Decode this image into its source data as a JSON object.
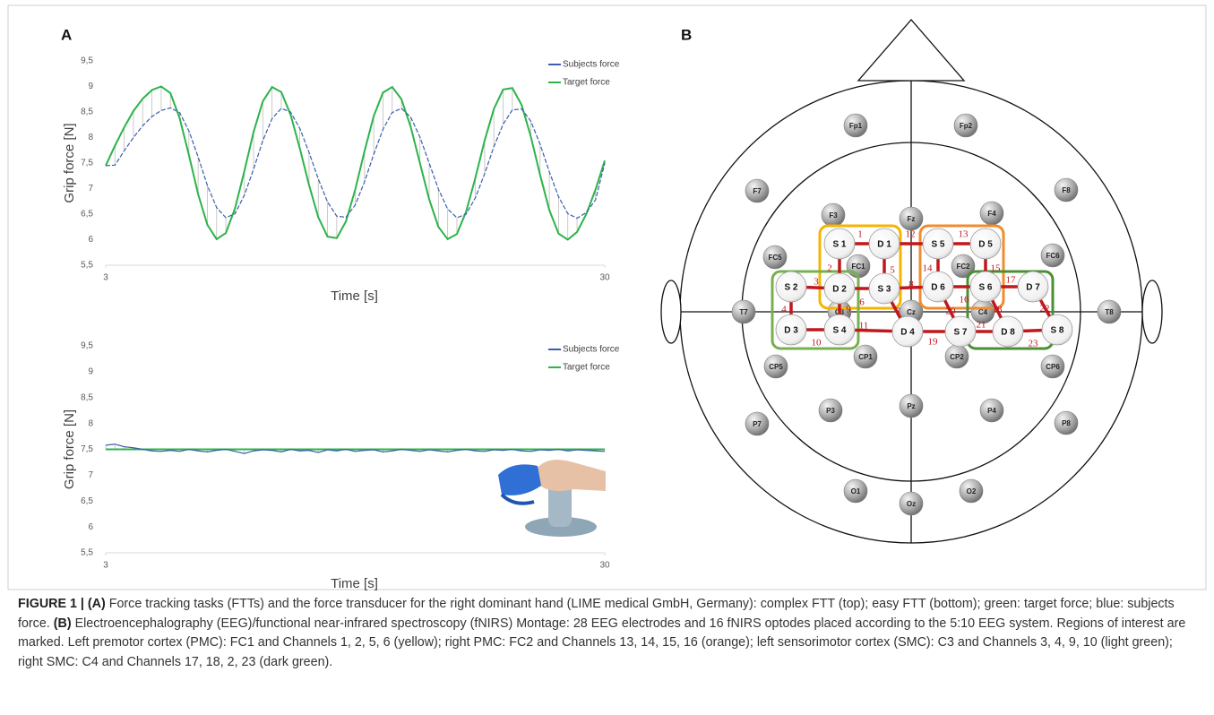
{
  "panel_labels": [
    "A",
    "B"
  ],
  "chart_data": [
    {
      "type": "line",
      "ylabel": "Grip force [N]",
      "xlabel": "Time [s]",
      "x": [
        3,
        3.5,
        4,
        4.5,
        5,
        5.5,
        6,
        6.5,
        7,
        7.5,
        8,
        8.5,
        9,
        9.5,
        10,
        10.5,
        11,
        11.5,
        12,
        12.5,
        13,
        13.5,
        14,
        14.5,
        15,
        15.5,
        16,
        16.5,
        17,
        17.5,
        18,
        18.5,
        19,
        19.5,
        20,
        20.5,
        21,
        21.5,
        22,
        22.5,
        23,
        23.5,
        24,
        24.5,
        25,
        25.5,
        26,
        26.5,
        27,
        27.5,
        28,
        28.5,
        29,
        29.5,
        30
      ],
      "series": [
        {
          "name": "Subjects force",
          "color": "#3d5fa8",
          "values": [
            7.45,
            7.46,
            7.74,
            8.0,
            8.23,
            8.41,
            8.53,
            8.58,
            8.49,
            8.13,
            7.62,
            7.06,
            6.63,
            6.43,
            6.51,
            6.87,
            7.38,
            7.94,
            8.37,
            8.57,
            8.5,
            8.18,
            7.71,
            7.19,
            6.74,
            6.46,
            6.44,
            6.68,
            7.13,
            7.67,
            8.16,
            8.49,
            8.57,
            8.4,
            8.01,
            7.5,
            6.99,
            6.6,
            6.43,
            6.5,
            6.82,
            7.29,
            7.82,
            8.26,
            8.54,
            8.56,
            8.32,
            7.87,
            7.33,
            6.84,
            6.51,
            6.42,
            6.53,
            6.78,
            7.5
          ]
        },
        {
          "name": "Target force",
          "color": "#2db34a",
          "values": [
            7.45,
            7.84,
            8.2,
            8.52,
            8.76,
            8.93,
            9.0,
            8.87,
            8.38,
            7.66,
            6.89,
            6.29,
            6.01,
            6.13,
            6.62,
            7.34,
            8.11,
            8.71,
            8.99,
            8.89,
            8.45,
            7.79,
            7.07,
            6.44,
            6.06,
            6.03,
            6.36,
            6.98,
            7.73,
            8.42,
            8.88,
            8.99,
            8.75,
            8.21,
            7.5,
            6.79,
            6.25,
            6.01,
            6.11,
            6.55,
            7.21,
            7.94,
            8.56,
            8.94,
            8.97,
            8.64,
            8.02,
            7.27,
            6.58,
            6.12,
            6.0,
            6.15,
            6.5,
            6.98,
            7.55
          ]
        }
      ],
      "xlim": [
        3,
        30
      ],
      "xticks": [
        3,
        30
      ],
      "ylim": [
        5.5,
        9.5
      ],
      "yticks": [
        {
          "value": 5.5,
          "label": "5,5"
        },
        6,
        {
          "value": 6.5,
          "label": "6,5"
        },
        7,
        {
          "value": 7.5,
          "label": "7,5"
        },
        8,
        {
          "value": 8.5,
          "label": "8,5"
        },
        9,
        {
          "value": 9.5,
          "label": "9,5"
        }
      ],
      "legend": "top-right"
    },
    {
      "type": "line",
      "ylabel": "Grip force [N]",
      "xlabel": "Time [s]",
      "x": [
        3,
        3.5,
        4,
        4.5,
        5,
        5.5,
        6,
        6.5,
        7,
        7.5,
        8,
        8.5,
        9,
        9.5,
        10,
        10.5,
        11,
        11.5,
        12,
        12.5,
        13,
        13.5,
        14,
        14.5,
        15,
        15.5,
        16,
        16.5,
        17,
        17.5,
        18,
        18.5,
        19,
        19.5,
        20,
        20.5,
        21,
        21.5,
        22,
        22.5,
        23,
        23.5,
        24,
        24.5,
        25,
        25.5,
        26,
        26.5,
        27,
        27.5,
        28,
        28.5,
        29,
        29.5,
        30
      ],
      "series": [
        {
          "name": "Subjects force",
          "color": "#3d5fa8",
          "values": [
            7.58,
            7.6,
            7.55,
            7.53,
            7.5,
            7.47,
            7.46,
            7.48,
            7.46,
            7.5,
            7.47,
            7.45,
            7.48,
            7.5,
            7.46,
            7.42,
            7.47,
            7.49,
            7.48,
            7.45,
            7.5,
            7.47,
            7.48,
            7.44,
            7.49,
            7.47,
            7.5,
            7.46,
            7.48,
            7.49,
            7.45,
            7.47,
            7.5,
            7.48,
            7.46,
            7.49,
            7.47,
            7.45,
            7.48,
            7.5,
            7.47,
            7.46,
            7.49,
            7.48,
            7.5,
            7.47,
            7.46,
            7.49,
            7.48,
            7.5,
            7.47,
            7.49,
            7.48,
            7.47,
            7.46
          ]
        },
        {
          "name": "Target force",
          "color": "#2db34a",
          "values": [
            7.5,
            7.5,
            7.5,
            7.5,
            7.5,
            7.5,
            7.5,
            7.5,
            7.5,
            7.5,
            7.5,
            7.5,
            7.5,
            7.5,
            7.5,
            7.5,
            7.5,
            7.5,
            7.5,
            7.5,
            7.5,
            7.5,
            7.5,
            7.5,
            7.5,
            7.5,
            7.5,
            7.5,
            7.5,
            7.5,
            7.5,
            7.5,
            7.5,
            7.5,
            7.5,
            7.5,
            7.5,
            7.5,
            7.5,
            7.5,
            7.5,
            7.5,
            7.5,
            7.5,
            7.5,
            7.5,
            7.5,
            7.5,
            7.5,
            7.5,
            7.5,
            7.5,
            7.5,
            7.5,
            7.5
          ]
        }
      ],
      "xlim": [
        3,
        30
      ],
      "xticks": [
        3,
        30
      ],
      "ylim": [
        5.5,
        9.5
      ],
      "yticks": [
        {
          "value": 5.5,
          "label": "5,5"
        },
        6,
        {
          "value": 6.5,
          "label": "6,5"
        },
        7,
        {
          "value": 7.5,
          "label": "7,5"
        },
        8,
        {
          "value": 8.5,
          "label": "8,5"
        },
        9,
        {
          "value": 9.5,
          "label": "9,5"
        }
      ],
      "legend": "top-right"
    }
  ],
  "montage": {
    "electrodes": [
      "Fp1",
      "Fp2",
      "F7",
      "F3",
      "Fz",
      "F4",
      "F8",
      "FC5",
      "FC1",
      "FC2",
      "FC6",
      "T7",
      "C3",
      "Cz",
      "C4",
      "T8",
      "CP5",
      "CP1",
      "CP2",
      "CP6",
      "P7",
      "P3",
      "Pz",
      "P4",
      "P8",
      "O1",
      "Oz",
      "O2"
    ],
    "optodes": [
      "S 1",
      "D 1",
      "S 5",
      "D 5",
      "S 2",
      "D 2",
      "S 3",
      "D 6",
      "S 6",
      "D 7",
      "D 3",
      "S 4",
      "D 4",
      "S 7",
      "D 8",
      "S 8"
    ],
    "channels": [
      1,
      2,
      3,
      4,
      5,
      6,
      7,
      8,
      9,
      10,
      11,
      12,
      13,
      14,
      15,
      16,
      17,
      18,
      19,
      20,
      21,
      22,
      23
    ],
    "channel_color": "#c0181d",
    "roi_colors": [
      "#f5b400",
      "#f08c30",
      "#76b050",
      "#4a8f35"
    ]
  },
  "caption": [
    {
      "text": "FIGURE 1 | ",
      "bold": true
    },
    {
      "text": "(A)",
      "bold": true
    },
    {
      "text": " Force tracking tasks (FTTs) and the force transducer for the right dominant hand (LIME medical GmbH, Germany): complex FTT (top); easy FTT (bottom); green: target force; blue: subjects force. ",
      "bold": false
    },
    {
      "text": "(B)",
      "bold": true
    },
    {
      "text": " Electroencephalography (EEG)/functional near-infrared spectroscopy (fNIRS) Montage: 28 EEG electrodes and 16 fNIRS optodes placed according to the 5:10 EEG system. Regions of interest are marked. Left premotor cortex (PMC): FC1 and Channels 1, 2, 5, 6 (yellow); right PMC: FC2 and Channels 13, 14, 15, 16 (orange); left sensorimotor cortex (SMC): C3 and Channels 3, 4, 9, 10 (light green); right SMC: C4 and Channels 17, 18, 2, 23 (dark green).",
      "bold": false
    }
  ]
}
